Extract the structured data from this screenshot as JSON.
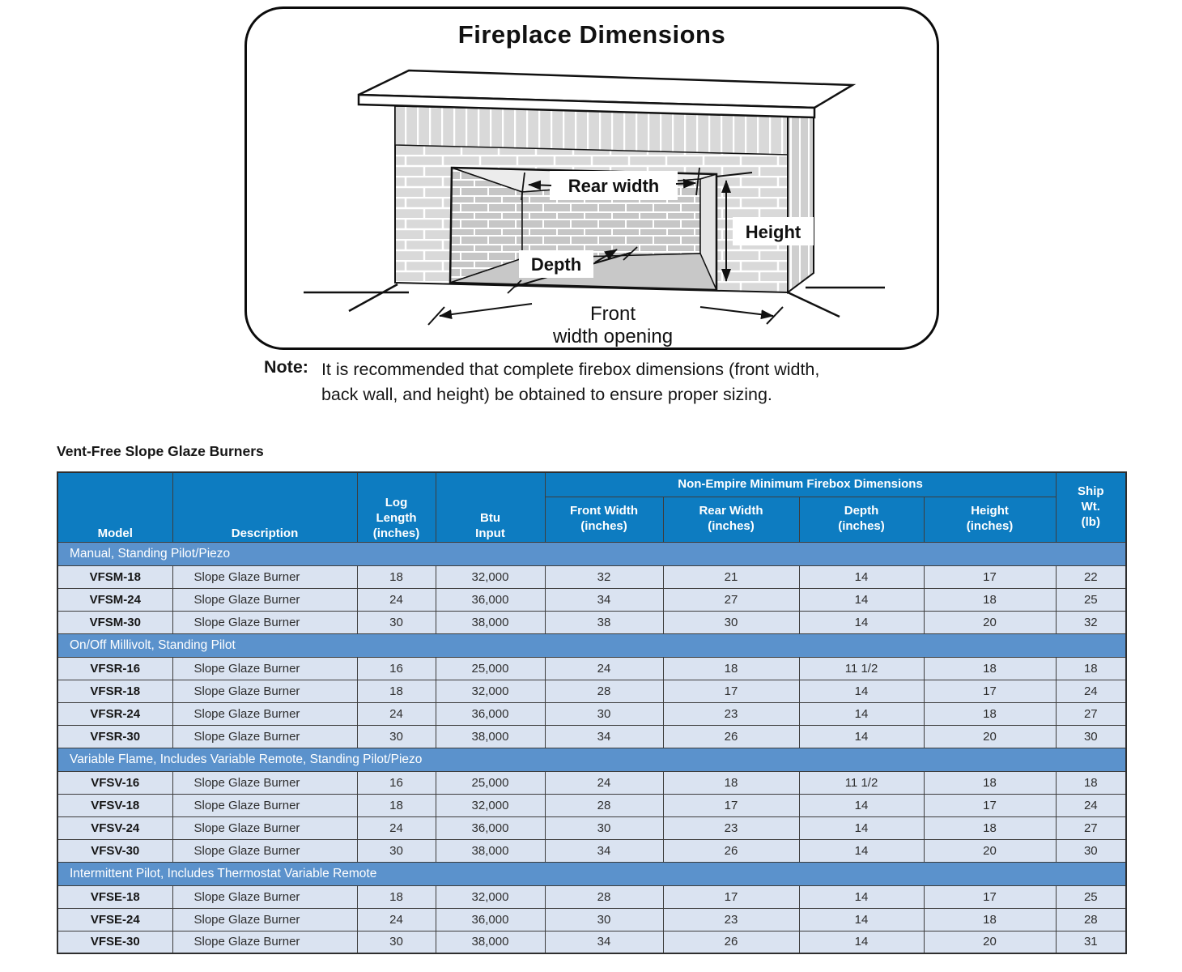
{
  "diagram": {
    "title": "Fireplace Dimensions",
    "labels": {
      "rear_width": "Rear width",
      "height": "Height",
      "depth": "Depth",
      "front_line1": "Front",
      "front_line2": "width opening"
    }
  },
  "note": {
    "label": "Note:",
    "line1": "It is recommended that complete firebox dimensions (front width,",
    "line2": "back wall, and height) be obtained to ensure proper sizing."
  },
  "table": {
    "title": "Vent-Free Slope Glaze Burners",
    "headers": {
      "model": "Model",
      "description": "Description",
      "log_length": "Log\nLength\n(inches)",
      "btu_input": "Btu\nInput",
      "group": "Non-Empire Minimum Firebox Dimensions",
      "front_width": "Front Width\n(inches)",
      "rear_width": "Rear Width\n(inches)",
      "depth": "Depth\n(inches)",
      "height": "Height\n(inches)",
      "ship_wt": "Ship\nWt.\n(lb)"
    },
    "sections": [
      {
        "label": "Manual, Standing Pilot/Piezo",
        "rows": [
          {
            "model": "VFSM-18",
            "description": "Slope Glaze Burner",
            "log_length": "18",
            "btu_input": "32,000",
            "front_width": "32",
            "rear_width": "21",
            "depth": "14",
            "height": "17",
            "ship_wt": "22"
          },
          {
            "model": "VFSM-24",
            "description": "Slope Glaze Burner",
            "log_length": "24",
            "btu_input": "36,000",
            "front_width": "34",
            "rear_width": "27",
            "depth": "14",
            "height": "18",
            "ship_wt": "25"
          },
          {
            "model": "VFSM-30",
            "description": "Slope Glaze Burner",
            "log_length": "30",
            "btu_input": "38,000",
            "front_width": "38",
            "rear_width": "30",
            "depth": "14",
            "height": "20",
            "ship_wt": "32"
          }
        ]
      },
      {
        "label": "On/Off Millivolt, Standing Pilot",
        "rows": [
          {
            "model": "VFSR-16",
            "description": "Slope Glaze Burner",
            "log_length": "16",
            "btu_input": "25,000",
            "front_width": "24",
            "rear_width": "18",
            "depth": "11 1/2",
            "height": "18",
            "ship_wt": "18"
          },
          {
            "model": "VFSR-18",
            "description": "Slope Glaze Burner",
            "log_length": "18",
            "btu_input": "32,000",
            "front_width": "28",
            "rear_width": "17",
            "depth": "14",
            "height": "17",
            "ship_wt": "24"
          },
          {
            "model": "VFSR-24",
            "description": "Slope Glaze Burner",
            "log_length": "24",
            "btu_input": "36,000",
            "front_width": "30",
            "rear_width": "23",
            "depth": "14",
            "height": "18",
            "ship_wt": "27"
          },
          {
            "model": "VFSR-30",
            "description": "Slope Glaze Burner",
            "log_length": "30",
            "btu_input": "38,000",
            "front_width": "34",
            "rear_width": "26",
            "depth": "14",
            "height": "20",
            "ship_wt": "30"
          }
        ]
      },
      {
        "label": "Variable Flame, Includes Variable Remote, Standing Pilot/Piezo",
        "rows": [
          {
            "model": "VFSV-16",
            "description": "Slope Glaze Burner",
            "log_length": "16",
            "btu_input": "25,000",
            "front_width": "24",
            "rear_width": "18",
            "depth": "11 1/2",
            "height": "18",
            "ship_wt": "18"
          },
          {
            "model": "VFSV-18",
            "description": "Slope Glaze Burner",
            "log_length": "18",
            "btu_input": "32,000",
            "front_width": "28",
            "rear_width": "17",
            "depth": "14",
            "height": "17",
            "ship_wt": "24"
          },
          {
            "model": "VFSV-24",
            "description": "Slope Glaze Burner",
            "log_length": "24",
            "btu_input": "36,000",
            "front_width": "30",
            "rear_width": "23",
            "depth": "14",
            "height": "18",
            "ship_wt": "27"
          },
          {
            "model": "VFSV-30",
            "description": "Slope Glaze Burner",
            "log_length": "30",
            "btu_input": "38,000",
            "front_width": "34",
            "rear_width": "26",
            "depth": "14",
            "height": "20",
            "ship_wt": "30"
          }
        ]
      },
      {
        "label": "Intermittent Pilot, Includes Thermostat Variable Remote",
        "rows": [
          {
            "model": "VFSE-18",
            "description": "Slope Glaze Burner",
            "log_length": "18",
            "btu_input": "32,000",
            "front_width": "28",
            "rear_width": "17",
            "depth": "14",
            "height": "17",
            "ship_wt": "25"
          },
          {
            "model": "VFSE-24",
            "description": "Slope Glaze Burner",
            "log_length": "24",
            "btu_input": "36,000",
            "front_width": "30",
            "rear_width": "23",
            "depth": "14",
            "height": "18",
            "ship_wt": "28"
          },
          {
            "model": "VFSE-30",
            "description": "Slope Glaze Burner",
            "log_length": "30",
            "btu_input": "38,000",
            "front_width": "34",
            "rear_width": "26",
            "depth": "14",
            "height": "20",
            "ship_wt": "31"
          }
        ]
      }
    ]
  },
  "colors": {
    "header_blue": "#0d7cc1",
    "section_blue": "#5b92cc",
    "row_blue": "#dae3f1"
  }
}
